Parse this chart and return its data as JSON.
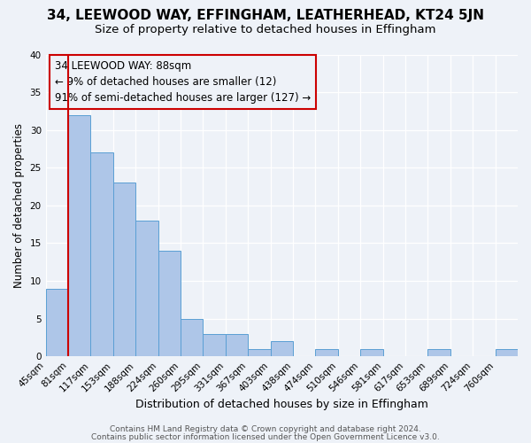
{
  "title1": "34, LEEWOOD WAY, EFFINGHAM, LEATHERHEAD, KT24 5JN",
  "title2": "Size of property relative to detached houses in Effingham",
  "xlabel": "Distribution of detached houses by size in Effingham",
  "ylabel": "Number of detached properties",
  "bin_labels": [
    "45sqm",
    "81sqm",
    "117sqm",
    "153sqm",
    "188sqm",
    "224sqm",
    "260sqm",
    "295sqm",
    "331sqm",
    "367sqm",
    "403sqm",
    "438sqm",
    "474sqm",
    "510sqm",
    "546sqm",
    "581sqm",
    "617sqm",
    "653sqm",
    "689sqm",
    "724sqm",
    "760sqm"
  ],
  "bar_values": [
    9,
    32,
    27,
    23,
    18,
    14,
    5,
    3,
    3,
    1,
    2,
    0,
    1,
    0,
    1,
    0,
    0,
    1,
    0,
    0,
    1
  ],
  "bar_color": "#aec6e8",
  "bar_edge_color": "#5a9fd4",
  "annotation_box_text": "34 LEEWOOD WAY: 88sqm\n← 9% of detached houses are smaller (12)\n91% of semi-detached houses are larger (127) →",
  "vline_x": 1,
  "vline_color": "#cc0000",
  "ylim": [
    0,
    40
  ],
  "yticks": [
    0,
    5,
    10,
    15,
    20,
    25,
    30,
    35,
    40
  ],
  "footer1": "Contains HM Land Registry data © Crown copyright and database right 2024.",
  "footer2": "Contains public sector information licensed under the Open Government Licence v3.0.",
  "bg_color": "#eef2f8",
  "box_border_color": "#cc0000",
  "title1_fontsize": 11,
  "title2_fontsize": 9.5,
  "xlabel_fontsize": 9,
  "ylabel_fontsize": 8.5,
  "annotation_fontsize": 8.5,
  "footer_fontsize": 6.5,
  "tick_fontsize": 7.5
}
